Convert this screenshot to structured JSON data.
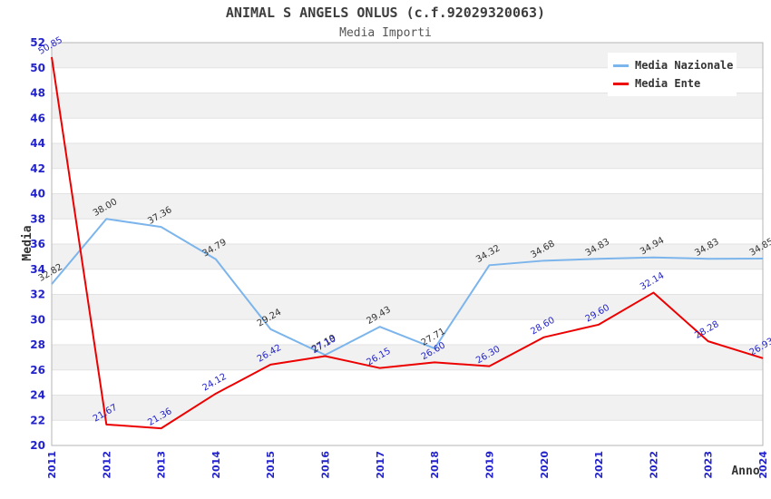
{
  "title": "ANIMAL S ANGELS ONLUS (c.f.92029320063)",
  "subtitle": "Media Importi",
  "chart_data": {
    "type": "line",
    "x": [
      2011,
      2012,
      2013,
      2014,
      2015,
      2016,
      2017,
      2018,
      2019,
      2020,
      2021,
      2022,
      2023,
      2024
    ],
    "xlabel": "Anno",
    "ylabel": "Media",
    "ylim": [
      20,
      52
    ],
    "ytick_step": 2,
    "grid": true,
    "band_fill": "#f1f1f1",
    "legend_position": "top-right",
    "series": [
      {
        "name": "Media Nazionale",
        "color": "#7cb5ec",
        "label_color": "#333333",
        "values": [
          32.82,
          38.0,
          37.36,
          34.79,
          29.24,
          27.19,
          29.43,
          27.71,
          34.32,
          34.68,
          34.83,
          34.94,
          34.83,
          34.85
        ]
      },
      {
        "name": "Media Ente",
        "color": "#ec0000",
        "label_color": "#2323cc",
        "values": [
          50.85,
          21.67,
          21.36,
          24.12,
          26.42,
          27.1,
          26.15,
          26.6,
          26.3,
          28.6,
          29.6,
          32.14,
          28.28,
          26.93
        ]
      }
    ]
  },
  "colors": {
    "tick_label": "#2323cc",
    "title": "#3d3d3d",
    "plot_border": "#b5b5b5",
    "gridline": "#e2e2e2"
  }
}
